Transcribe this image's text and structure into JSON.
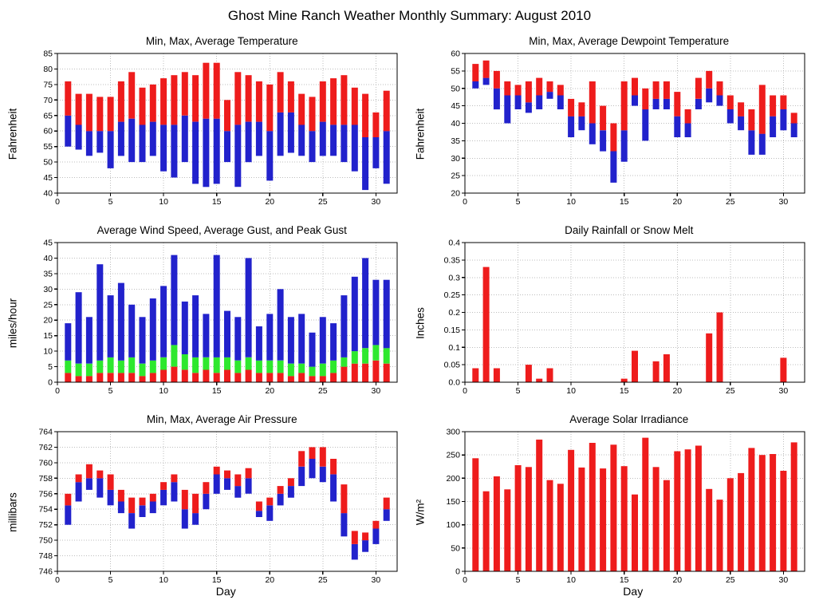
{
  "page_title": "Ghost Mine Ranch Weather Monthly Summary: August 2010",
  "colors": {
    "red": "#ee1c1c",
    "blue": "#2222cc",
    "green": "#2ee82e",
    "grid": "#bdbdbd",
    "axis": "#000000"
  },
  "chart_data": [
    {
      "id": "temperature",
      "type": "range-bar",
      "title": "Min, Max, Average Temperature",
      "ylabel": "Fahrenheit",
      "xlabel": "",
      "ylim": [
        40,
        85
      ],
      "yticks": [
        40,
        45,
        50,
        55,
        60,
        65,
        70,
        75,
        80,
        85
      ],
      "xlim": [
        0,
        32
      ],
      "xticks": [
        0,
        5,
        10,
        15,
        20,
        25,
        30
      ],
      "min": [
        55,
        54,
        52,
        53,
        48,
        52,
        50,
        50,
        52,
        47,
        45,
        50,
        43,
        42,
        43,
        50,
        42,
        50,
        52,
        44,
        52,
        53,
        52,
        50,
        52,
        52,
        50,
        47,
        41,
        48,
        43
      ],
      "avg": [
        65,
        62,
        60,
        60,
        60,
        63,
        64,
        62,
        63,
        62,
        62,
        65,
        63,
        64,
        64,
        60,
        62,
        63,
        63,
        60,
        66,
        66,
        62,
        60,
        63,
        62,
        62,
        62,
        58,
        58,
        60
      ],
      "max": [
        76,
        72,
        72,
        71,
        71,
        76,
        79,
        74,
        75,
        77,
        78,
        79,
        78,
        82,
        82,
        70,
        79,
        78,
        76,
        75,
        79,
        76,
        72,
        71,
        76,
        77,
        78,
        74,
        72,
        66,
        73
      ]
    },
    {
      "id": "dewpoint",
      "type": "range-bar",
      "title": "Min, Max, Average Dewpoint Temperature",
      "ylabel": "Fahrenheit",
      "xlabel": "",
      "ylim": [
        20,
        60
      ],
      "yticks": [
        20,
        25,
        30,
        35,
        40,
        45,
        50,
        55,
        60
      ],
      "xlim": [
        0,
        32
      ],
      "xticks": [
        0,
        5,
        10,
        15,
        20,
        25,
        30
      ],
      "min": [
        50,
        51,
        44,
        40,
        44,
        43,
        44,
        47,
        44,
        36,
        38,
        34,
        32,
        23,
        29,
        45,
        35,
        44,
        44,
        36,
        36,
        44,
        46,
        45,
        40,
        38,
        31,
        31,
        36,
        38,
        36
      ],
      "avg": [
        52,
        53,
        50,
        48,
        48,
        46,
        48,
        49,
        48,
        42,
        42,
        40,
        38,
        32,
        38,
        48,
        44,
        47,
        47,
        42,
        40,
        47,
        50,
        48,
        44,
        42,
        38,
        37,
        42,
        44,
        40
      ],
      "max": [
        57,
        58,
        55,
        52,
        51,
        52,
        53,
        52,
        51,
        47,
        46,
        52,
        45,
        40,
        52,
        53,
        50,
        52,
        52,
        49,
        44,
        53,
        55,
        52,
        48,
        46,
        44,
        51,
        48,
        48,
        43
      ]
    },
    {
      "id": "wind",
      "type": "stacked-bar",
      "title": "Average Wind Speed, Average Gust, and Peak Gust",
      "ylabel": "miles/hour",
      "xlabel": "",
      "ylim": [
        0,
        45
      ],
      "yticks": [
        0,
        5,
        10,
        15,
        20,
        25,
        30,
        35,
        40,
        45
      ],
      "xlim": [
        0,
        32
      ],
      "xticks": [
        0,
        5,
        10,
        15,
        20,
        25,
        30
      ],
      "speed": [
        3,
        2,
        2,
        3,
        3,
        3,
        3,
        2,
        3,
        4,
        5,
        4,
        3,
        4,
        3,
        4,
        3,
        4,
        3,
        3,
        3,
        2,
        3,
        2,
        2,
        3,
        5,
        6,
        6,
        7,
        6
      ],
      "gust": [
        7,
        6,
        6,
        7,
        8,
        7,
        8,
        6,
        7,
        8,
        12,
        9,
        8,
        8,
        8,
        8,
        7,
        8,
        7,
        7,
        7,
        6,
        6,
        5,
        6,
        7,
        8,
        10,
        11,
        12,
        11
      ],
      "peak": [
        19,
        29,
        21,
        38,
        28,
        32,
        25,
        21,
        27,
        31,
        41,
        26,
        28,
        22,
        41,
        23,
        21,
        40,
        18,
        22,
        30,
        21,
        22,
        16,
        21,
        19,
        28,
        34,
        40,
        33,
        33
      ]
    },
    {
      "id": "rainfall",
      "type": "bar",
      "title": "Daily Rainfall or Snow Melt",
      "ylabel": "Inches",
      "xlabel": "",
      "ylim": [
        0,
        0.4
      ],
      "yticks": [
        0,
        0.05,
        0.1,
        0.15,
        0.2,
        0.25,
        0.3,
        0.35,
        0.4
      ],
      "ytick_labels": [
        "0.0",
        "0.05",
        "0.1",
        "0.15",
        "0.2",
        "0.25",
        "0.3",
        "0.35",
        "0.4"
      ],
      "xlim": [
        0,
        32
      ],
      "xticks": [
        0,
        5,
        10,
        15,
        20,
        25,
        30
      ],
      "values": [
        0.04,
        0.33,
        0.04,
        0,
        0,
        0.05,
        0.01,
        0.04,
        0,
        0,
        0,
        0,
        0,
        0,
        0.01,
        0.09,
        0,
        0.06,
        0.08,
        0,
        0,
        0,
        0.14,
        0.2,
        0,
        0,
        0,
        0,
        0,
        0.07,
        0
      ]
    },
    {
      "id": "pressure",
      "type": "range-bar",
      "title": "Min, Max, Average Air Pressure",
      "ylabel": "millibars",
      "xlabel": "Day",
      "ylim": [
        746,
        764
      ],
      "yticks": [
        746,
        748,
        750,
        752,
        754,
        756,
        758,
        760,
        762,
        764
      ],
      "xlim": [
        0,
        32
      ],
      "xticks": [
        0,
        5,
        10,
        15,
        20,
        25,
        30
      ],
      "min": [
        752,
        755,
        756.5,
        755.5,
        754.5,
        753.5,
        751.5,
        753,
        753.5,
        754.5,
        755,
        751.5,
        752,
        754,
        756,
        756.5,
        755.5,
        756,
        753,
        752.5,
        754.5,
        755.5,
        757,
        758,
        757.5,
        755,
        750.5,
        747.5,
        748.5,
        749.5,
        752.5
      ],
      "avg": [
        754.5,
        757.5,
        758,
        758,
        756.5,
        755,
        753.5,
        754.5,
        755,
        756.5,
        757.5,
        754,
        753.5,
        756,
        758.5,
        758,
        757,
        758,
        753.8,
        754.5,
        756,
        757,
        759.5,
        760.5,
        759.5,
        758.5,
        753.5,
        749.5,
        750,
        751.5,
        754
      ],
      "max": [
        756,
        758.5,
        759.8,
        759,
        758.5,
        756.5,
        755.5,
        755.5,
        756,
        757.5,
        758.5,
        756.5,
        756,
        757.5,
        759.5,
        759,
        758.5,
        759.3,
        755,
        755.5,
        757,
        758,
        761.5,
        762,
        762,
        760.5,
        757.2,
        751.2,
        751,
        752.5,
        755.5
      ]
    },
    {
      "id": "solar",
      "type": "bar",
      "title": "Average Solar Irradiance",
      "ylabel": "W/m²",
      "xlabel": "Day",
      "ylim": [
        0,
        300
      ],
      "yticks": [
        0,
        50,
        100,
        150,
        200,
        250,
        300
      ],
      "xlim": [
        0,
        32
      ],
      "xticks": [
        0,
        5,
        10,
        15,
        20,
        25,
        30
      ],
      "values": [
        243,
        172,
        204,
        176,
        228,
        224,
        283,
        196,
        188,
        261,
        223,
        276,
        221,
        272,
        226,
        165,
        287,
        224,
        196,
        258,
        262,
        270,
        177,
        154,
        200,
        211,
        265,
        250,
        252,
        216,
        277
      ]
    }
  ]
}
